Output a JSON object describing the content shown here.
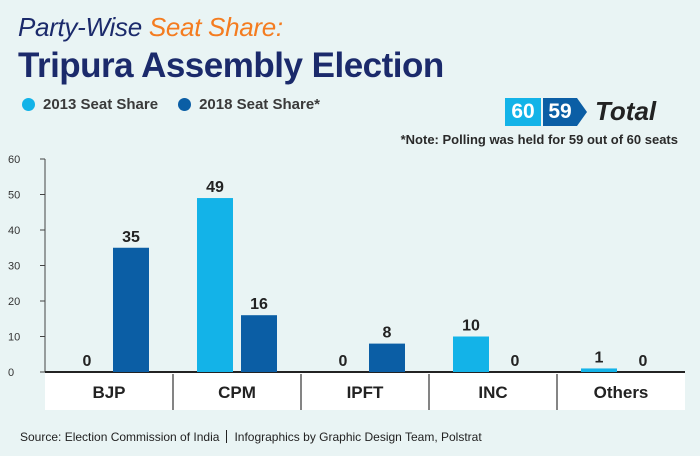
{
  "header": {
    "title_part1": "Party-Wise",
    "title_accent": "Seat Share:",
    "title_main": "Tripura Assembly Election"
  },
  "badge": {
    "total_2013": "60",
    "total_2018": "59",
    "label": "Total"
  },
  "note": "*Note: Polling was held for 59 out of 60 seats",
  "footer": {
    "source": "Source: Election Commission of India",
    "credit": "Infographics by Graphic Design Team, Polstrat"
  },
  "colors": {
    "s2013": "#13b3e8",
    "s2018": "#0b5ea5",
    "accent": "#f47c20",
    "title": "#1b2a6b"
  },
  "chart_data": {
    "type": "bar",
    "categories": [
      "BJP",
      "CPM",
      "IPFT",
      "INC",
      "Others"
    ],
    "series": [
      {
        "name": "2013 Seat Share",
        "values": [
          0,
          49,
          0,
          10,
          1
        ]
      },
      {
        "name": "2018 Seat Share*",
        "values": [
          35,
          16,
          8,
          0,
          0
        ]
      }
    ],
    "ylim": [
      0,
      60
    ],
    "yticks": [
      0,
      10,
      20,
      30,
      40,
      50,
      60
    ],
    "xlabel": "",
    "ylabel": "",
    "legend": "top-left",
    "grid": false
  }
}
